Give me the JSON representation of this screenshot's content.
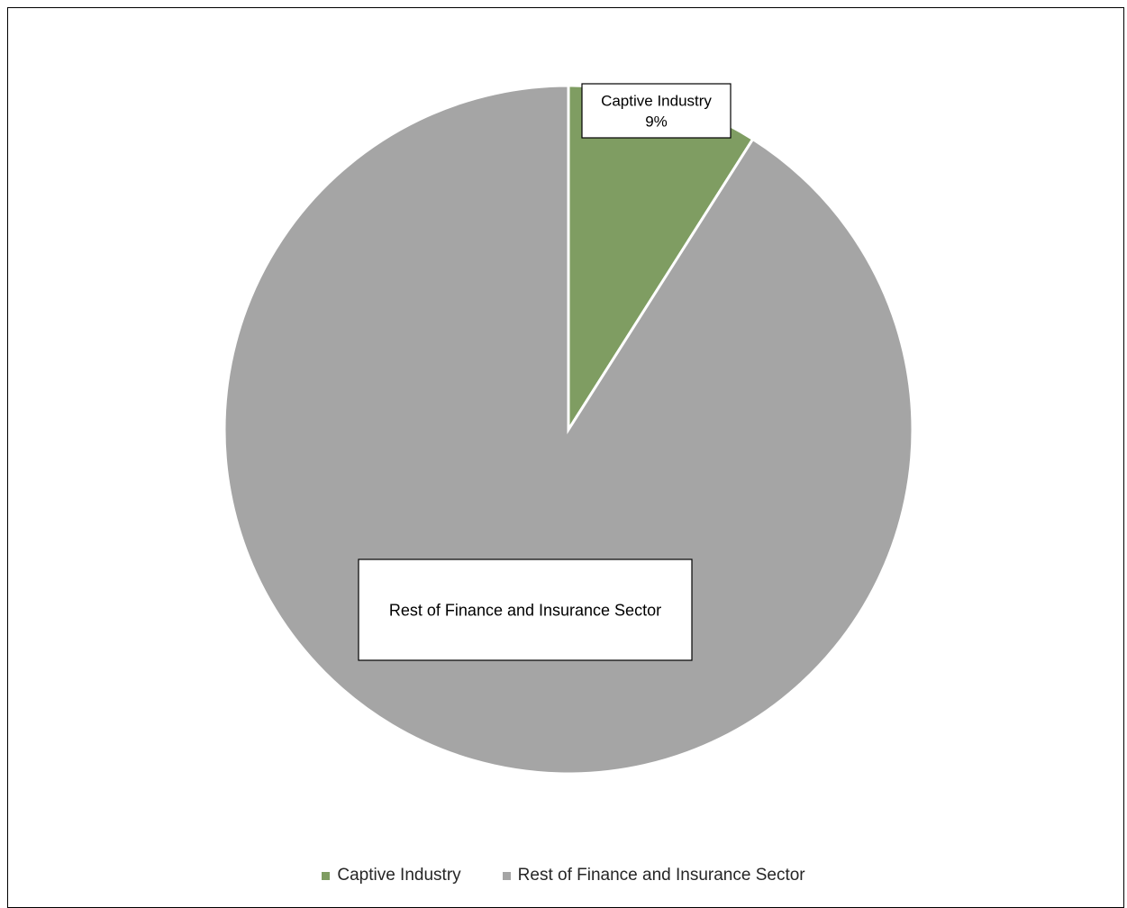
{
  "chart_data": {
    "type": "pie",
    "title": "",
    "slices": [
      {
        "label": "Captive Industry",
        "value": 9,
        "color": "#7f9d62",
        "data_label": "Captive Industry",
        "data_label_value": "9%"
      },
      {
        "label": "Rest of Finance and Insurance Sector",
        "value": 91,
        "color": "#a5a5a5",
        "data_label": "Rest of Finance and Insurance Sector",
        "data_label_value": ""
      }
    ],
    "start_angle_deg": 0,
    "direction": "clockwise",
    "legend": {
      "position": "bottom",
      "entries": [
        "Captive Industry",
        "Rest of Finance and Insurance Sector"
      ]
    }
  }
}
